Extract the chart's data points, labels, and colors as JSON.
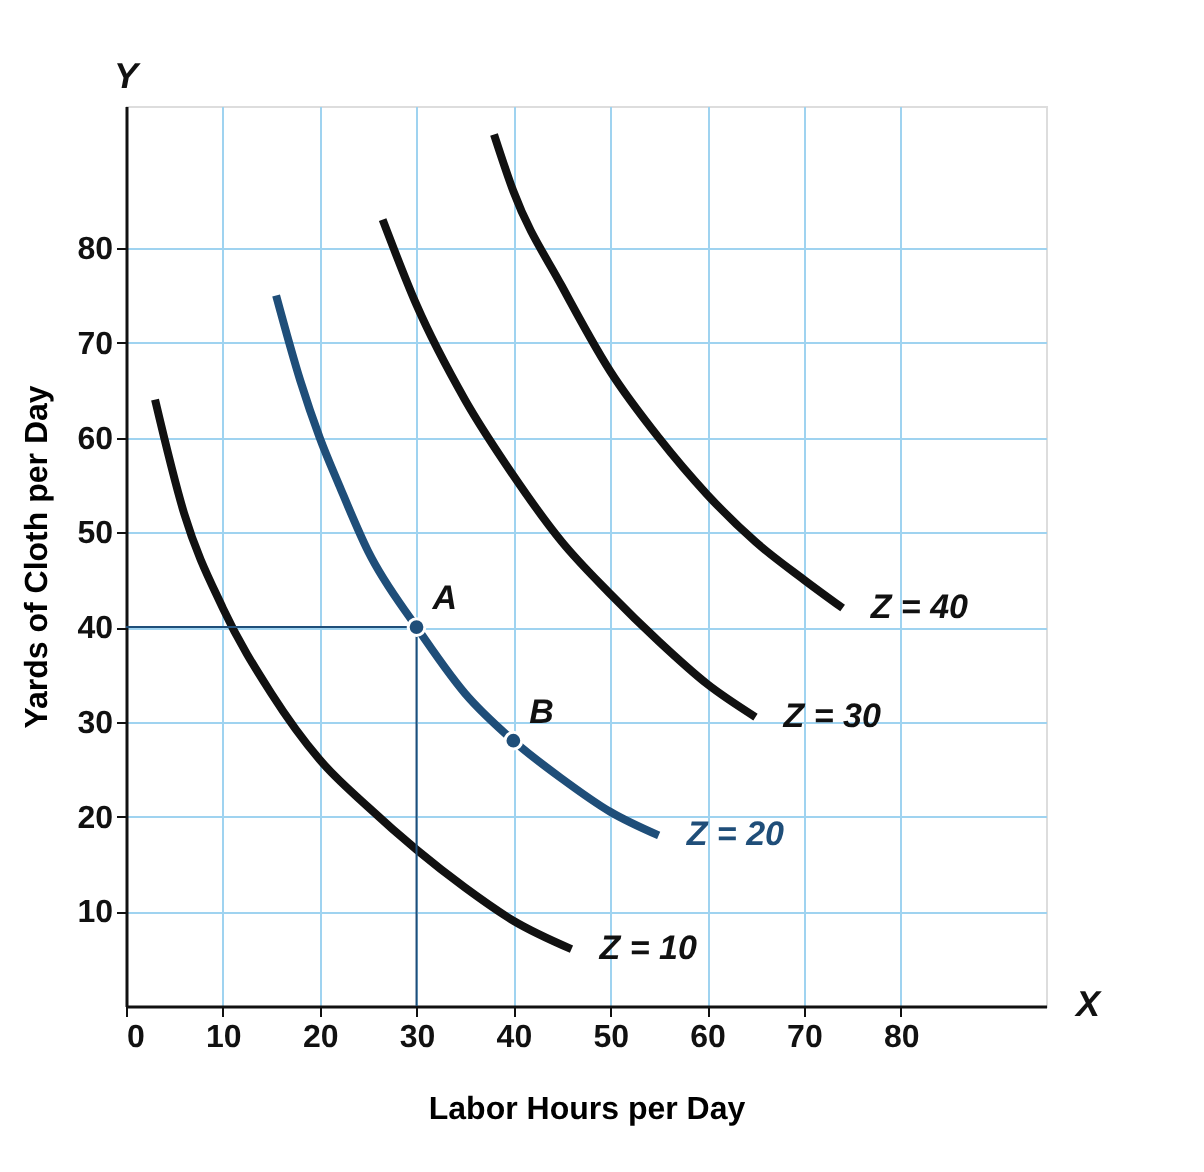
{
  "chart_data": {
    "type": "line",
    "xlabel": "Labor Hours per Day",
    "ylabel": "Yards of Cloth per Day",
    "xlim": [
      0,
      95
    ],
    "ylim": [
      0,
      95
    ],
    "xticks": [
      0,
      10,
      20,
      30,
      40,
      50,
      60,
      70,
      80
    ],
    "yticks": [
      10,
      20,
      30,
      40,
      50,
      60,
      70,
      80
    ],
    "grid": true,
    "line_style": "solid",
    "series": [
      {
        "name": "Z = 10",
        "color": "#111111",
        "x": [
          3,
          6,
          10,
          15,
          20,
          25,
          30,
          35,
          40,
          46
        ],
        "values": [
          64,
          52,
          42,
          33,
          26,
          21,
          16.5,
          12.5,
          9,
          6
        ]
      },
      {
        "name": "Z = 20",
        "color": "#1f4e79",
        "x": [
          15.5,
          18,
          20,
          22,
          25,
          30,
          35,
          40,
          45,
          50,
          55
        ],
        "values": [
          75,
          66,
          60,
          55,
          48,
          40,
          33,
          28,
          24,
          20.5,
          18
        ]
      },
      {
        "name": "Z = 30",
        "color": "#111111",
        "x": [
          26.5,
          30,
          35,
          40,
          45,
          50,
          55,
          60,
          65
        ],
        "values": [
          83,
          74,
          64,
          56,
          49,
          43.5,
          38.5,
          34,
          30.5
        ]
      },
      {
        "name": "Z = 40",
        "color": "#111111",
        "x": [
          38,
          40,
          45,
          50,
          55,
          60,
          65,
          70,
          74
        ],
        "values": [
          92,
          86,
          76,
          67,
          60,
          54,
          49,
          45,
          42
        ]
      },
      {
        "type": "line",
        "color": "#1f4e79",
        "x": [
          0,
          30,
          30
        ],
        "values": [
          40,
          40,
          0
        ]
      },
      {
        "type": "scatter",
        "marker": "circle",
        "color": "#1f4e79",
        "x": [
          30,
          40
        ],
        "values": [
          40,
          28
        ]
      }
    ],
    "annotations": [
      {
        "text": "A",
        "x": 30,
        "y": 40
      },
      {
        "text": "B",
        "x": 40,
        "y": 28
      },
      "Y",
      "X"
    ]
  }
}
